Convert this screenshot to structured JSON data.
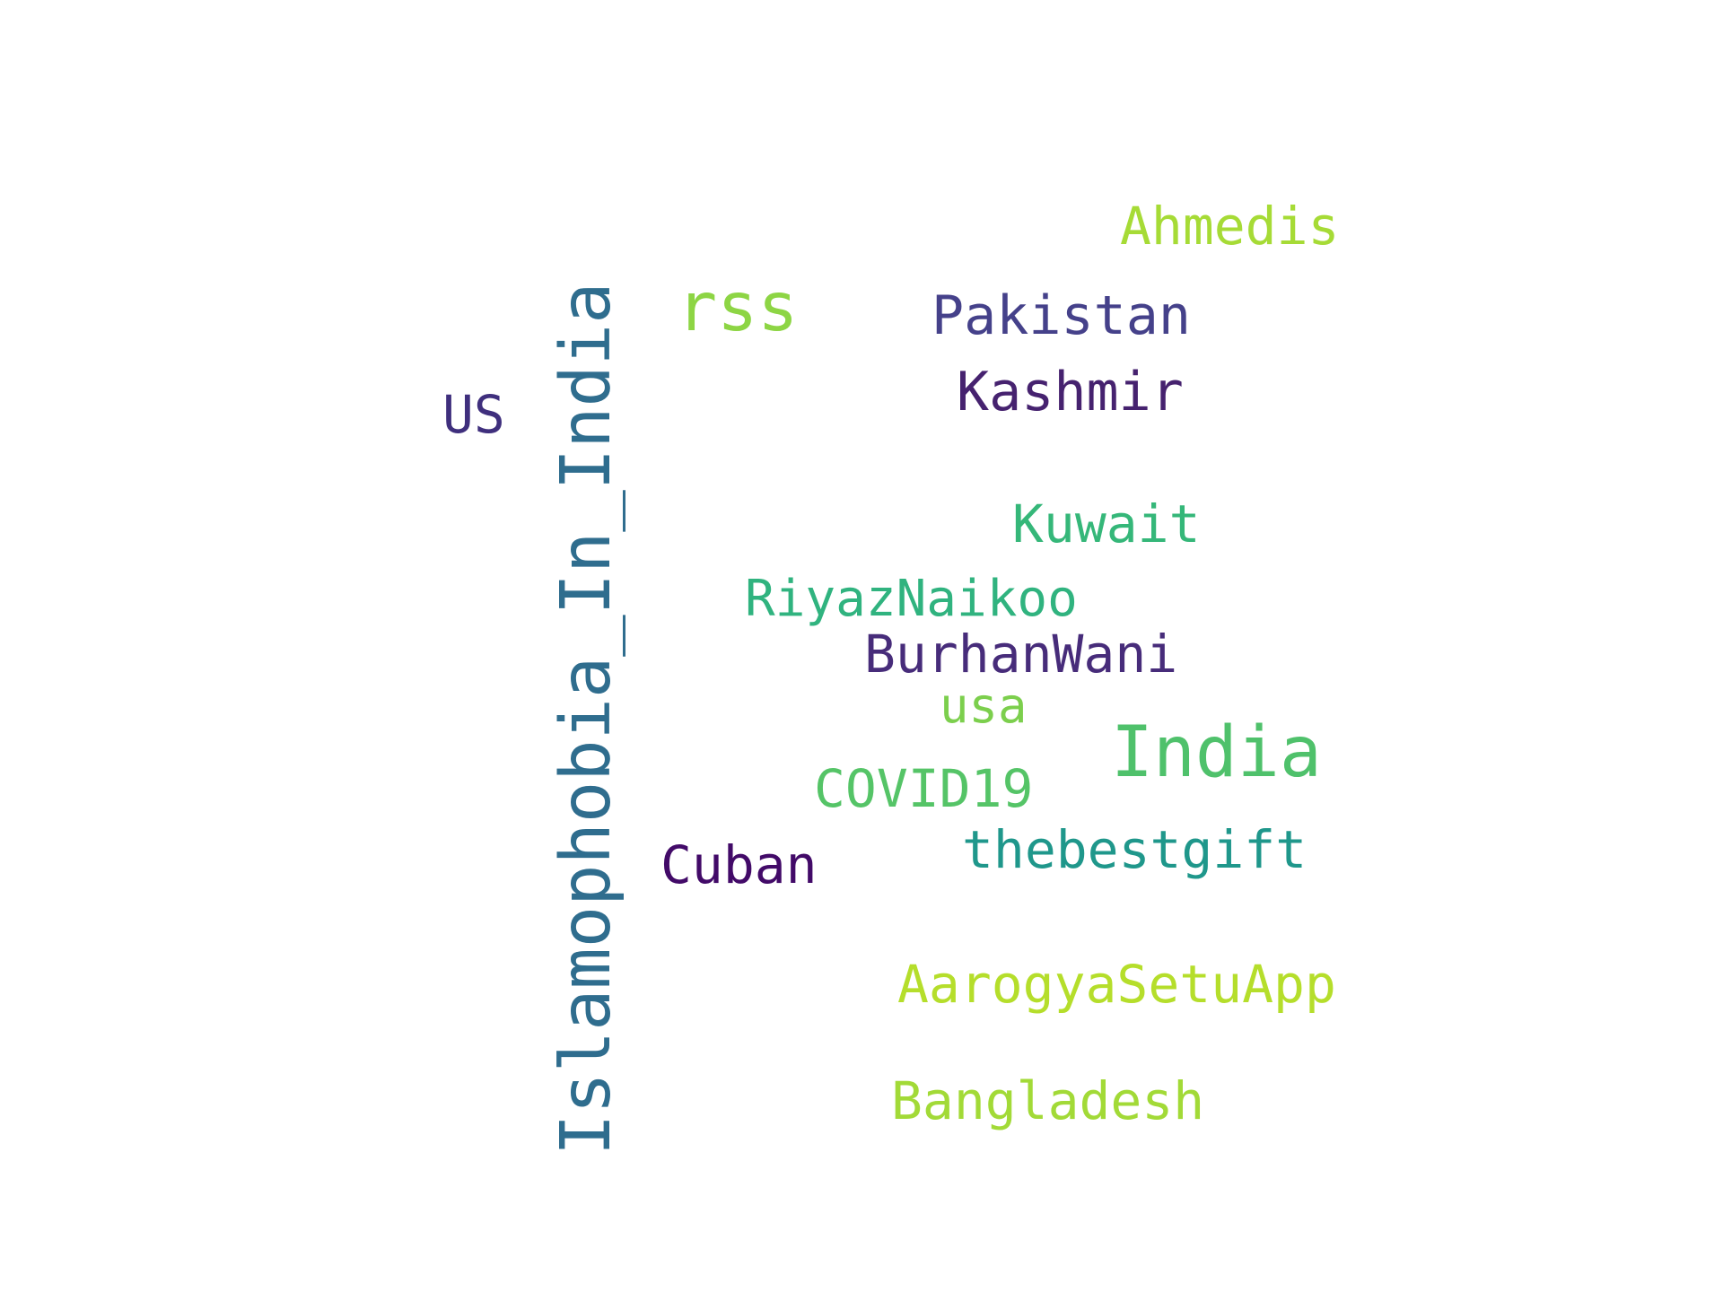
{
  "words": [
    {
      "key": "islamophobia",
      "text": "Islamophobia_In_India",
      "color": "#2f6d8e"
    },
    {
      "key": "india",
      "text": "India",
      "color": "#4fc16b"
    },
    {
      "key": "rss",
      "text": "rss",
      "color": "#8dd544"
    },
    {
      "key": "pakistan",
      "text": "Pakistan",
      "color": "#45418a"
    },
    {
      "key": "kashmir",
      "text": "Kashmir",
      "color": "#46226f"
    },
    {
      "key": "ahmedis",
      "text": "Ahmedis",
      "color": "#a6db36"
    },
    {
      "key": "us",
      "text": "US",
      "color": "#3f2f7d"
    },
    {
      "key": "kuwait",
      "text": "Kuwait",
      "color": "#35b779"
    },
    {
      "key": "riyaznaikoo",
      "text": "RiyazNaikoo",
      "color": "#30b37f"
    },
    {
      "key": "burhanwani",
      "text": "BurhanWani",
      "color": "#472c7a"
    },
    {
      "key": "usa",
      "text": "usa",
      "color": "#7ccf4d"
    },
    {
      "key": "covid19",
      "text": "COVID19",
      "color": "#55c467"
    },
    {
      "key": "cuban",
      "text": "Cuban",
      "color": "#420a68"
    },
    {
      "key": "thebestgift",
      "text": "thebestgift",
      "color": "#1f978b"
    },
    {
      "key": "aarogyasetuapp",
      "text": "AarogyaSetuApp",
      "color": "#b5de2b"
    },
    {
      "key": "bangladesh",
      "text": "Bangladesh",
      "color": "#a2da37"
    }
  ]
}
